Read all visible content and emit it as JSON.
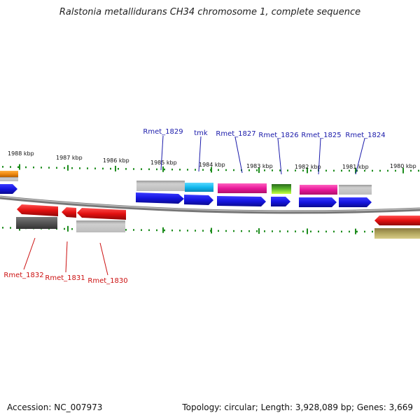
{
  "title": "Ralstonia metallidurans CH34 chromosome 1, complete sequence",
  "footer": {
    "accession": "Accession: NC_007973",
    "summary": "Topology: circular; Length: 3,928,089 bp; Genes: 3,669"
  },
  "ticks": [
    "1988 kbp",
    "1987 kbp",
    "1986 kbp",
    "1985 kbp",
    "1984 kbp",
    "1983 kbp",
    "1982 kbp",
    "1981 kbp",
    "1980 kbp"
  ],
  "labels_top": [
    "Rmet_1829",
    "tmk",
    "Rmet_1827",
    "Rmet_1826",
    "Rmet_1825",
    "Rmet_1824"
  ],
  "labels_bottom": [
    "Rmet_1832",
    "Rmet_1831",
    "Rmet_1830"
  ],
  "colors": {
    "blue": "#1515e0",
    "red": "#e21010",
    "gray": "#b8b8b8",
    "darkgray": "#555555",
    "pink": "#e8189a",
    "cyan": "#12b8ee",
    "green": "#5ab82c",
    "orange": "#f08a10",
    "olive": "#b4a860",
    "label_blue": "#1a1aaa",
    "label_red": "#cc1111",
    "tick_green": "#1c8c1c"
  }
}
